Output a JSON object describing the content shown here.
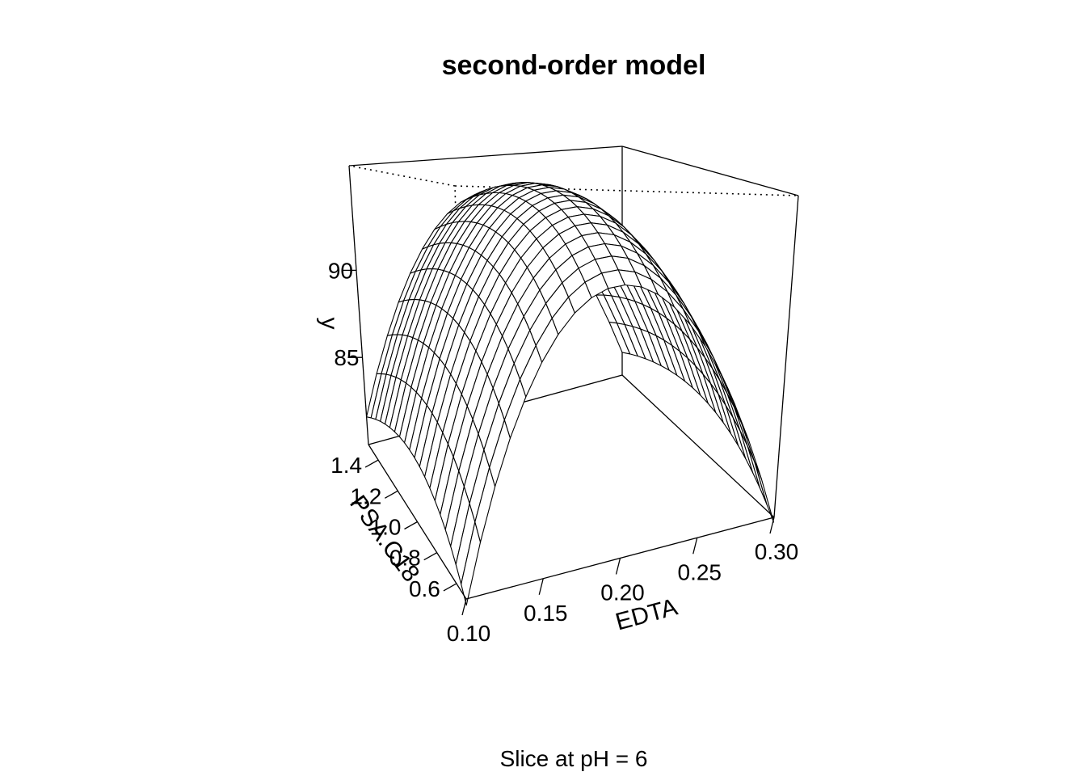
{
  "chart_data": {
    "type": "surface3d",
    "title": "second-order model",
    "caption": "Slice at pH = 6",
    "x": {
      "label": "EDTA",
      "range": [
        0.1,
        0.3
      ],
      "ticks": [
        0.1,
        0.15,
        0.2,
        0.25,
        0.3
      ],
      "tick_labels": [
        "0.10",
        "0.15",
        "0.20",
        "0.25",
        "0.30"
      ]
    },
    "y": {
      "label": "PSA.C18",
      "range": [
        0.5,
        1.5
      ],
      "ticks": [
        0.6,
        0.8,
        1.0,
        1.2,
        1.4
      ],
      "tick_labels": [
        "0.6",
        "0.8",
        "1.0",
        "1.2",
        "1.4"
      ]
    },
    "z": {
      "label": "y",
      "range": [
        80.0,
        96.0
      ],
      "ticks": [
        85,
        90
      ],
      "tick_labels": [
        "85",
        "90"
      ]
    },
    "surface": {
      "model": "second-order (quadratic) response surface",
      "peak": {
        "EDTA": 0.2,
        "PSA.C18": 1.1,
        "y": 95.2
      },
      "edge_values": {
        "EDTA_0.10_PSA_0.5": 81.8,
        "EDTA_0.30_PSA_0.5": 81.6,
        "EDTA_0.10_PSA_1.5": 83.5,
        "EDTA_0.30_PSA_1.5": 83.5
      },
      "grid": [
        21,
        21
      ]
    }
  }
}
